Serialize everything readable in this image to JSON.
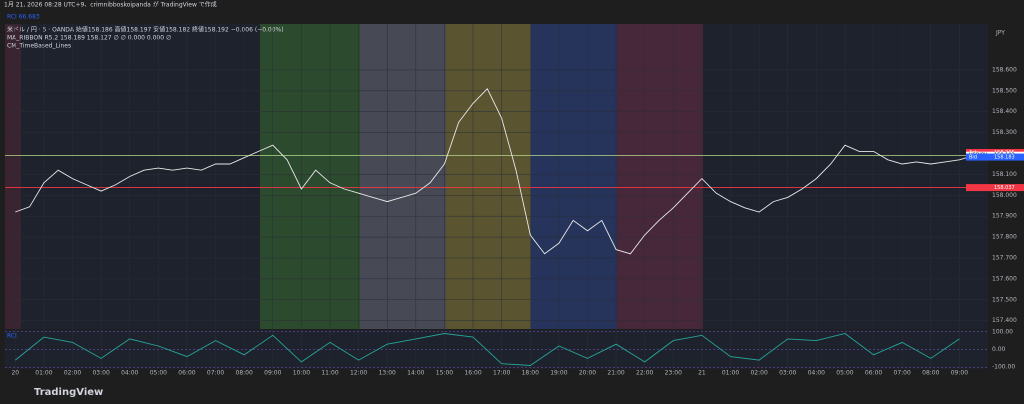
{
  "header": {
    "caption": "1月 21, 2026 08:28 UTC+9、crimnibboskoipanda が TradingView で作成",
    "rci_top": "RCI 66.683",
    "logo": "TradingView",
    "legend": [
      "米ドル / 円 · 5 · OANDA  始値158.186 高値158.197 安値158.182 終値158.192 −0.006 (−0.00%)",
      "MA_RIBBON R5.2  158.189 158.127 ∅ ∅ 0.000 0.000 ∅",
      "CM_TimeBased_Lines"
    ],
    "currency": "JPY",
    "rci_label": "RCI"
  },
  "chart_data": [
    {
      "type": "line",
      "series": [
        {
          "name": "USDJPY",
          "color": "#e8e8e8",
          "x": [
            0,
            0.5,
            1,
            1.5,
            2,
            2.5,
            3,
            3.5,
            4,
            4.5,
            5,
            5.5,
            6,
            6.5,
            7,
            7.5,
            8,
            8.5,
            9,
            9.5,
            10,
            10.5,
            11,
            11.5,
            12,
            12.5,
            13,
            13.5,
            14,
            14.5,
            15,
            15.5,
            16,
            16.5,
            17,
            17.5,
            18,
            18.5,
            19,
            19.5,
            20,
            20.5,
            21,
            21.5,
            22,
            22.5,
            23,
            23.5,
            24,
            24.5,
            25,
            25.5,
            26,
            26.5,
            27,
            27.5,
            28,
            28.5,
            29,
            29.5,
            30,
            30.5,
            31,
            31.5,
            32,
            32.5,
            33,
            33.5
          ],
          "values": [
            157.92,
            157.945,
            158.06,
            158.12,
            158.08,
            158.05,
            158.02,
            158.05,
            158.09,
            158.12,
            158.13,
            158.12,
            158.13,
            158.12,
            158.15,
            158.15,
            158.18,
            158.21,
            158.24,
            158.17,
            158.03,
            158.12,
            158.06,
            158.03,
            158.01,
            157.99,
            157.97,
            157.99,
            158.01,
            158.06,
            158.15,
            158.35,
            158.44,
            158.51,
            158.37,
            158.12,
            157.81,
            157.72,
            157.77,
            157.88,
            157.83,
            157.88,
            157.74,
            157.72,
            157.81,
            157.88,
            157.94,
            158.01,
            158.08,
            158.01,
            157.97,
            157.94,
            157.92,
            157.97,
            157.99,
            158.03,
            158.08,
            158.15,
            158.24,
            158.21,
            158.21,
            158.17,
            158.15,
            158.16,
            158.15,
            158.16,
            158.17,
            158.19
          ]
        }
      ],
      "hlines": [
        {
          "value": 158.19,
          "color": "#b5d98a"
        },
        {
          "value": 158.037,
          "color": "#f23645"
        }
      ],
      "price_tags": [
        {
          "label": "Ask",
          "value": 158.205,
          "color": "#f23645"
        },
        {
          "label": "USDJPY",
          "value": 158.192,
          "color": "#ffffff"
        },
        {
          "label": "Bid",
          "value": 158.183,
          "color": "#2962ff"
        },
        {
          "value": 158.037,
          "color": "#f23645"
        }
      ],
      "xlim": [
        -0.36,
        34.0
      ],
      "ylim": [
        157.36,
        158.82
      ],
      "yticks": [
        {
          "value": 157.4,
          "label": "157.400"
        },
        {
          "value": 157.5,
          "label": "157.500"
        },
        {
          "value": 157.6,
          "label": "157.600"
        },
        {
          "value": 157.7,
          "label": "157.700"
        },
        {
          "value": 157.8,
          "label": "157.800"
        },
        {
          "value": 157.9,
          "label": "157.900"
        },
        {
          "value": 158.0,
          "label": "158.000"
        },
        {
          "value": 158.1,
          "label": "158.100"
        },
        {
          "value": 158.3,
          "label": "158.300"
        },
        {
          "value": 158.4,
          "label": "158.400"
        },
        {
          "value": 158.5,
          "label": "158.500"
        },
        {
          "value": 158.6,
          "label": "158.600"
        }
      ],
      "xticks": [
        {
          "value": 0,
          "label": "20"
        },
        {
          "value": 1,
          "label": "01:00"
        },
        {
          "value": 2,
          "label": "02:00"
        },
        {
          "value": 3,
          "label": "03:00"
        },
        {
          "value": 4,
          "label": "04:00"
        },
        {
          "value": 5,
          "label": "05:00"
        },
        {
          "value": 6,
          "label": "06:00"
        },
        {
          "value": 7,
          "label": "07:00"
        },
        {
          "value": 8,
          "label": "08:00"
        },
        {
          "value": 9,
          "label": "09:00"
        },
        {
          "value": 10,
          "label": "10:00"
        },
        {
          "value": 11,
          "label": "11:00"
        },
        {
          "value": 12,
          "label": "12:00"
        },
        {
          "value": 13,
          "label": "13:00"
        },
        {
          "value": 14,
          "label": "14:00"
        },
        {
          "value": 15,
          "label": "15:00"
        },
        {
          "value": 16,
          "label": "16:00"
        },
        {
          "value": 17,
          "label": "17:00"
        },
        {
          "value": 18,
          "label": "18:00"
        },
        {
          "value": 19,
          "label": "19:00"
        },
        {
          "value": 20,
          "label": "20:00"
        },
        {
          "value": 21,
          "label": "21:00"
        },
        {
          "value": 22,
          "label": "22:00"
        },
        {
          "value": 23,
          "label": "23:00"
        },
        {
          "value": 24,
          "label": "21"
        },
        {
          "value": 25,
          "label": "01:00"
        },
        {
          "value": 26,
          "label": "02:00"
        },
        {
          "value": 27,
          "label": "03:00"
        },
        {
          "value": 28,
          "label": "04:00"
        },
        {
          "value": 29,
          "label": "05:00"
        },
        {
          "value": 30,
          "label": "06:00"
        },
        {
          "value": 31,
          "label": "07:00"
        },
        {
          "value": 32,
          "label": "08:00"
        },
        {
          "value": 33,
          "label": "09:00"
        }
      ],
      "grid": true
    },
    {
      "type": "line",
      "series": [
        {
          "name": "RCI",
          "color": "#26a69a",
          "x": [
            0,
            1,
            2,
            3,
            4,
            5,
            6,
            7,
            8,
            9,
            10,
            11,
            12,
            13,
            14,
            15,
            16,
            17,
            18,
            19,
            20,
            21,
            22,
            23,
            24,
            25,
            26,
            27,
            28,
            29,
            30,
            31,
            32,
            33
          ],
          "values": [
            -60,
            70,
            40,
            -50,
            60,
            20,
            -40,
            50,
            -30,
            80,
            -70,
            40,
            -60,
            30,
            60,
            90,
            70,
            -80,
            -90,
            20,
            -50,
            30,
            -70,
            50,
            80,
            -40,
            -60,
            60,
            50,
            90,
            -30,
            40,
            -50,
            60
          ]
        }
      ],
      "xlim": [
        -0.36,
        34.0
      ],
      "ylim": [
        -110,
        110
      ],
      "yticks": [
        {
          "value": 100,
          "label": "100.00"
        },
        {
          "value": 0,
          "label": "0.00"
        },
        {
          "value": -100,
          "label": "-100.00"
        }
      ]
    }
  ]
}
